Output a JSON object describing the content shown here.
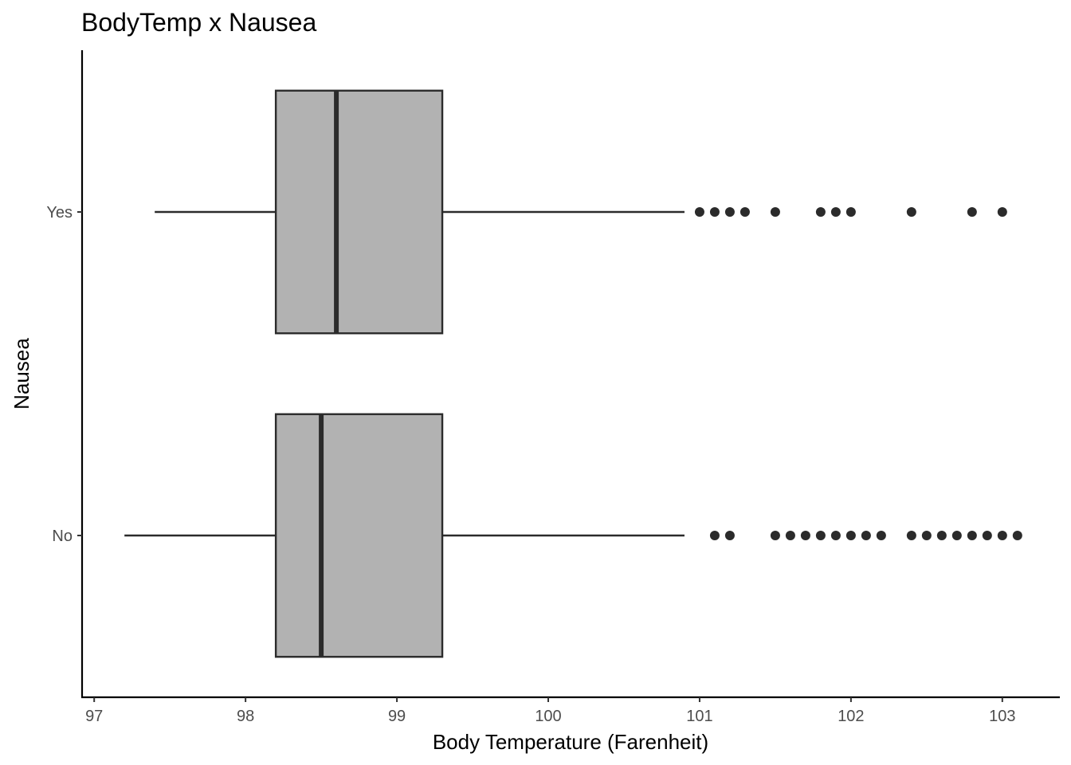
{
  "chart_data": {
    "type": "boxplot",
    "orientation": "horizontal",
    "title": "BodyTemp x Nausea",
    "xlabel": "Body Temperature (Farenheit)",
    "ylabel": "Nausea",
    "xlim": [
      96.92,
      103.38
    ],
    "xticks": [
      97,
      98,
      99,
      100,
      101,
      102,
      103
    ],
    "xtick_labels": [
      "97",
      "98",
      "99",
      "100",
      "101",
      "102",
      "103"
    ],
    "categories": [
      "No",
      "Yes"
    ],
    "grid": false,
    "legend": "none",
    "colors": {
      "box_fill": "#b2b2b2",
      "outline": "#2b2b2b",
      "axis": "#000000",
      "tick_label": "#4d4d4d"
    },
    "series": [
      {
        "category": "Yes",
        "min": 97.4,
        "q1": 98.2,
        "median": 98.6,
        "q3": 99.3,
        "max": 100.9,
        "outliers": [
          101.0,
          101.1,
          101.2,
          101.3,
          101.5,
          101.8,
          101.9,
          102.0,
          102.4,
          102.8,
          103.0
        ]
      },
      {
        "category": "No",
        "min": 97.2,
        "q1": 98.2,
        "median": 98.5,
        "q3": 99.3,
        "max": 100.9,
        "outliers": [
          101.1,
          101.2,
          101.5,
          101.6,
          101.7,
          101.8,
          101.9,
          102.0,
          102.1,
          102.2,
          102.4,
          102.5,
          102.6,
          102.7,
          102.8,
          102.9,
          103.0,
          103.1
        ]
      }
    ]
  }
}
